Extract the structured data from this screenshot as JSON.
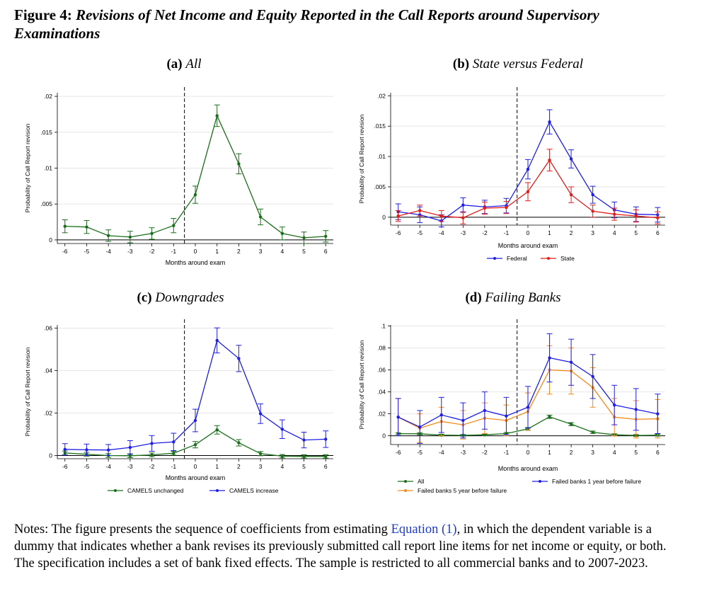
{
  "figure": {
    "label": "Figure 4:",
    "title": "Revisions of Net Income and Equity Reported in the Call Reports around Supervisory Examinations"
  },
  "notes": {
    "prefix": "Notes: The figure presents the sequence of coefficients from estimating ",
    "link": "Equation (1)",
    "suffix": ", in which the dependent variable is a dummy that indicates whether a bank revises its previously submitted call report line items for net income or equity, or both. The specification includes a set of bank fixed effects. The sample is restricted to all commercial banks and to 2007-2023."
  },
  "colors": {
    "green": "#1a6e1a",
    "blue": "#1e1ee6",
    "red": "#e31b1b",
    "orange": "#f28a1e"
  },
  "chart_data": [
    {
      "type": "line",
      "panel_label": "(a)",
      "title": "All",
      "xlabel": "Months around exam",
      "ylabel": "Probability of Call Report revision",
      "x": [
        -6,
        -5,
        -4,
        -3,
        -2,
        -1,
        0,
        1,
        2,
        3,
        4,
        5,
        6
      ],
      "x_ticks": [
        "-6",
        "-5",
        "-4",
        "-3",
        "-2",
        "-1",
        "0",
        "1",
        "2",
        "3",
        "4",
        "5",
        "6"
      ],
      "y_ticks": [
        {
          "v": 0,
          "l": "0"
        },
        {
          "v": 0.005,
          "l": ".005"
        },
        {
          "v": 0.01,
          "l": ".01"
        },
        {
          "v": 0.015,
          "l": ".015"
        },
        {
          "v": 0.02,
          "l": ".02"
        }
      ],
      "ylim": [
        -0.0005,
        0.0205
      ],
      "exam_line_x": -0.5,
      "zero_line": true,
      "grid": true,
      "legend": [],
      "series": [
        {
          "name": "All",
          "color": "#1a6e1a",
          "values": [
            0.0019,
            0.0018,
            0.0006,
            0.0004,
            0.0009,
            0.002,
            0.0063,
            0.0173,
            0.0106,
            0.0032,
            0.0009,
            0.0003,
            0.0005
          ],
          "ci_low": [
            0.001,
            0.0009,
            -0.0002,
            -0.0004,
            0.0001,
            0.001,
            0.0051,
            0.0158,
            0.0092,
            0.0021,
            0.0,
            -0.0005,
            -0.0003
          ],
          "ci_high": [
            0.0028,
            0.0027,
            0.0014,
            0.0012,
            0.0017,
            0.003,
            0.0075,
            0.0188,
            0.012,
            0.0043,
            0.0018,
            0.0011,
            0.0013
          ]
        }
      ]
    },
    {
      "type": "line",
      "panel_label": "(b)",
      "title": "State versus Federal",
      "xlabel": "Months around exam",
      "ylabel": "Probability of Call Report revision",
      "x": [
        -6,
        -5,
        -4,
        -3,
        -2,
        -1,
        0,
        1,
        2,
        3,
        4,
        5,
        6
      ],
      "x_ticks": [
        "-6",
        "-5",
        "-4",
        "-3",
        "-2",
        "-1",
        "0",
        "1",
        "2",
        "3",
        "4",
        "5",
        "6"
      ],
      "y_ticks": [
        {
          "v": 0,
          "l": "0"
        },
        {
          "v": 0.005,
          "l": ".005"
        },
        {
          "v": 0.01,
          "l": ".01"
        },
        {
          "v": 0.015,
          "l": ".015"
        },
        {
          "v": 0.02,
          "l": ".02"
        }
      ],
      "ylim": [
        -0.0013,
        0.0205
      ],
      "exam_line_x": -0.5,
      "zero_line": true,
      "grid": true,
      "legend": [
        "Federal",
        "State"
      ],
      "series": [
        {
          "name": "Federal",
          "color": "#1e1ee6",
          "values": [
            0.0009,
            0.0004,
            -0.0006,
            0.002,
            0.0017,
            0.0019,
            0.0079,
            0.0157,
            0.0096,
            0.0037,
            0.0012,
            0.0005,
            0.0004
          ],
          "ci_low": [
            -0.0004,
            -0.0009,
            -0.0016,
            0.0008,
            0.0006,
            0.0007,
            0.0063,
            0.0137,
            0.0081,
            0.0023,
            -0.0001,
            -0.0007,
            -0.0008
          ],
          "ci_high": [
            0.0022,
            0.0017,
            0.0004,
            0.0032,
            0.0028,
            0.0031,
            0.0095,
            0.0177,
            0.0111,
            0.0051,
            0.0025,
            0.0017,
            0.0016
          ]
        },
        {
          "name": "State",
          "color": "#e31b1b",
          "values": [
            0.0002,
            0.0011,
            0.0002,
            -0.0001,
            0.0015,
            0.0016,
            0.0042,
            0.0094,
            0.0037,
            0.001,
            0.0005,
            0.0002,
            -0.0001
          ],
          "ci_low": [
            -0.0007,
            0.0002,
            -0.0007,
            -0.0011,
            0.0005,
            0.0006,
            0.0027,
            0.0076,
            0.0024,
            0.0,
            -0.0005,
            -0.0008,
            -0.0011
          ],
          "ci_high": [
            0.0011,
            0.002,
            0.0011,
            0.0009,
            0.0025,
            0.0026,
            0.0057,
            0.0112,
            0.005,
            0.002,
            0.0015,
            0.0012,
            0.0009
          ]
        }
      ]
    },
    {
      "type": "line",
      "panel_label": "(c)",
      "title": "Downgrades",
      "xlabel": "Months around exam",
      "ylabel": "Probability of Call Report revision",
      "x": [
        -6,
        -5,
        -4,
        -3,
        -2,
        -1,
        0,
        1,
        2,
        3,
        4,
        5,
        6
      ],
      "x_ticks": [
        "-6",
        "-5",
        "-4",
        "-3",
        "-2",
        "-1",
        "0",
        "1",
        "2",
        "3",
        "4",
        "5",
        "6"
      ],
      "y_ticks": [
        {
          "v": 0,
          "l": "0"
        },
        {
          "v": 0.02,
          "l": ".02"
        },
        {
          "v": 0.04,
          "l": ".04"
        },
        {
          "v": 0.06,
          "l": ".06"
        }
      ],
      "ylim": [
        -0.0015,
        0.0615
      ],
      "exam_line_x": -0.5,
      "zero_line": true,
      "grid": true,
      "legend": [
        "CAMELS unchanged",
        "CAMELS increase"
      ],
      "series": [
        {
          "name": "CAMELS unchanged",
          "color": "#1a6e1a",
          "values": [
            0.0012,
            0.0006,
            0.0,
            -0.0001,
            0.0003,
            0.0011,
            0.0051,
            0.0121,
            0.006,
            0.0009,
            -0.0003,
            -0.0004,
            -0.0004
          ],
          "ci_low": [
            0.0003,
            -0.0003,
            -0.0009,
            -0.001,
            -0.0006,
            0.0002,
            0.0036,
            0.0101,
            0.0045,
            -0.0001,
            -0.0011,
            -0.0012,
            -0.0012
          ],
          "ci_high": [
            0.0021,
            0.0015,
            0.0009,
            0.0008,
            0.0012,
            0.002,
            0.0066,
            0.0141,
            0.0075,
            0.0019,
            0.0005,
            0.0004,
            0.0004
          ]
        },
        {
          "name": "CAMELS increase",
          "color": "#1e1ee6",
          "values": [
            0.0029,
            0.0027,
            0.0026,
            0.0038,
            0.0057,
            0.0064,
            0.0165,
            0.0542,
            0.0457,
            0.0197,
            0.0124,
            0.0073,
            0.0077
          ],
          "ci_low": [
            0.0002,
            0.0,
            0.0,
            0.0006,
            0.002,
            0.0023,
            0.0112,
            0.0483,
            0.0395,
            0.0151,
            0.008,
            0.0036,
            0.0038
          ],
          "ci_high": [
            0.0056,
            0.0054,
            0.0052,
            0.007,
            0.0094,
            0.0105,
            0.0218,
            0.0601,
            0.0519,
            0.0243,
            0.0168,
            0.011,
            0.0116
          ]
        }
      ]
    },
    {
      "type": "line",
      "panel_label": "(d)",
      "title": "Failing Banks",
      "xlabel": "Months around exam",
      "ylabel": "Probability of Call Report revision",
      "x": [
        -6,
        -5,
        -4,
        -3,
        -2,
        -1,
        0,
        1,
        2,
        3,
        4,
        5,
        6
      ],
      "x_ticks": [
        "-6",
        "-5",
        "-4",
        "-3",
        "-2",
        "-1",
        "0",
        "1",
        "2",
        "3",
        "4",
        "5",
        "6"
      ],
      "y_ticks": [
        {
          "v": 0,
          "l": "0"
        },
        {
          "v": 0.02,
          "l": ".02"
        },
        {
          "v": 0.04,
          "l": ".04"
        },
        {
          "v": 0.06,
          "l": ".06"
        },
        {
          "v": 0.08,
          "l": ".08"
        },
        {
          "v": 0.1,
          "l": ".1"
        }
      ],
      "ylim": [
        -0.008,
        0.101
      ],
      "exam_line_x": -0.5,
      "zero_line": true,
      "grid": true,
      "legend": [
        "All",
        "Failed banks 1 year before failure",
        "Failed banks 5 year before failure"
      ],
      "series": [
        {
          "name": "All",
          "color": "#1a6e1a",
          "values": [
            0.0019,
            0.0018,
            0.0006,
            0.0004,
            0.0009,
            0.002,
            0.0063,
            0.0173,
            0.0106,
            0.0032,
            0.0009,
            0.0003,
            0.0005
          ],
          "ci_low": [
            0.001,
            0.0009,
            -0.0002,
            -0.0004,
            0.0001,
            0.001,
            0.0051,
            0.0158,
            0.0092,
            0.0021,
            0.0,
            -0.0005,
            -0.0003
          ],
          "ci_high": [
            0.0028,
            0.0027,
            0.0014,
            0.0012,
            0.0017,
            0.003,
            0.0075,
            0.0188,
            0.012,
            0.0043,
            0.0018,
            0.0011,
            0.0013
          ]
        },
        {
          "name": "Failed banks 5 year before failure",
          "color": "#f28a1e",
          "values": [
            0.017,
            0.007,
            0.013,
            0.01,
            0.016,
            0.014,
            0.022,
            0.06,
            0.059,
            0.044,
            0.017,
            0.015,
            0.0155
          ],
          "ci_low": [
            0.0,
            -0.006,
            0.0,
            -0.003,
            0.002,
            0.0,
            0.005,
            0.038,
            0.038,
            0.026,
            0.0,
            -0.002,
            -0.002
          ],
          "ci_high": [
            0.034,
            0.02,
            0.026,
            0.023,
            0.03,
            0.028,
            0.039,
            0.082,
            0.08,
            0.062,
            0.034,
            0.032,
            0.033
          ]
        },
        {
          "name": "Failed banks 1 year before failure",
          "color": "#1e1ee6",
          "values": [
            0.017,
            0.008,
            0.019,
            0.014,
            0.023,
            0.018,
            0.026,
            0.071,
            0.067,
            0.054,
            0.028,
            0.024,
            0.02
          ],
          "ci_low": [
            0.0,
            -0.007,
            0.003,
            -0.002,
            0.006,
            0.001,
            0.007,
            0.049,
            0.046,
            0.034,
            0.01,
            0.005,
            0.002
          ],
          "ci_high": [
            0.034,
            0.023,
            0.035,
            0.03,
            0.04,
            0.035,
            0.045,
            0.093,
            0.088,
            0.074,
            0.046,
            0.043,
            0.038
          ]
        }
      ]
    }
  ]
}
